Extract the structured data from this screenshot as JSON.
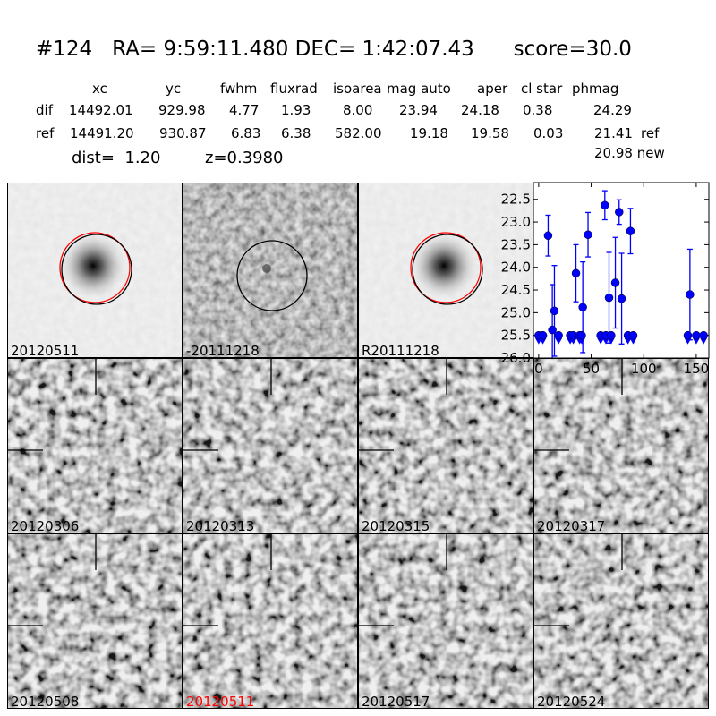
{
  "header": {
    "title": "#124   RA= 9:59:11.480 DEC= 1:42:07.43      score=30.0",
    "columns": [
      "xc",
      "yc",
      "fwhm",
      "fluxrad",
      "isoarea",
      "mag auto",
      "aper",
      "cl star",
      "phmag"
    ],
    "rows": [
      {
        "label": "dif",
        "values": [
          "14492.01",
          "929.98",
          "4.77",
          "1.93",
          "8.00",
          "23.94",
          "24.18",
          "0.38",
          "24.29"
        ],
        "suffix": ""
      },
      {
        "label": "ref",
        "values": [
          "14491.20",
          "930.87",
          "6.83",
          "6.38",
          "582.00",
          "19.18",
          "19.58",
          "0.03",
          "21.41"
        ],
        "suffix": "ref"
      }
    ],
    "new_mag": "20.98 new",
    "dist": "dist=  1.20",
    "z": "z=0.3980"
  },
  "panels": [
    {
      "label": "20120511",
      "kind": "galaxy",
      "label_color": "#000000"
    },
    {
      "label": "-20111218",
      "kind": "diff",
      "label_color": "#000000"
    },
    {
      "label": "R20111218",
      "kind": "galaxy",
      "label_color": "#000000"
    },
    {
      "label": "20120306",
      "kind": "noise",
      "label_color": "#000000"
    },
    {
      "label": "20120313",
      "kind": "noise",
      "label_color": "#000000"
    },
    {
      "label": "20120315",
      "kind": "noise",
      "label_color": "#000000"
    },
    {
      "label": "20120317",
      "kind": "noise",
      "label_color": "#000000"
    },
    {
      "label": "20120508",
      "kind": "noise",
      "label_color": "#000000"
    },
    {
      "label": "20120511",
      "kind": "noise",
      "label_color": "#ff0000"
    },
    {
      "label": "20120517",
      "kind": "noise",
      "label_color": "#000000"
    },
    {
      "label": "20120524",
      "kind": "noise",
      "label_color": "#000000"
    }
  ],
  "colors": {
    "points": "#0000ff",
    "aperture_ref": "#ff0000",
    "aperture": "#000000"
  },
  "chart_data": {
    "type": "scatter",
    "xlim": [
      -5,
      162
    ],
    "ylim": [
      26.0,
      22.13
    ],
    "y_inverted": true,
    "xticks": [
      "0",
      "50",
      "100",
      "150"
    ],
    "yticks": [
      "22.5",
      "23.0",
      "23.5",
      "24.0",
      "24.5",
      "25.0",
      "25.5",
      "26.0"
    ],
    "detections": [
      {
        "x": 9,
        "y": 23.3,
        "err": 0.45
      },
      {
        "x": 13,
        "y": 25.38,
        "err": 1.0
      },
      {
        "x": 15,
        "y": 24.96,
        "err": 1.0
      },
      {
        "x": 35.5,
        "y": 24.13,
        "err": 0.63
      },
      {
        "x": 42,
        "y": 24.88,
        "err": 1.0
      },
      {
        "x": 47,
        "y": 23.28,
        "err": 0.49
      },
      {
        "x": 63,
        "y": 22.63,
        "err": 0.32
      },
      {
        "x": 67,
        "y": 24.67,
        "err": 1.0
      },
      {
        "x": 73,
        "y": 24.34,
        "err": 1.0
      },
      {
        "x": 76.6,
        "y": 22.78,
        "err": 0.27
      },
      {
        "x": 79,
        "y": 24.69,
        "err": 1.0
      },
      {
        "x": 87.4,
        "y": 23.2,
        "err": 0.5
      },
      {
        "x": 144,
        "y": 24.6,
        "err": 1.0
      }
    ],
    "upper_limits": {
      "y": 25.5,
      "x": [
        0,
        4,
        19,
        30,
        33,
        39,
        41,
        59,
        64,
        69,
        85,
        90,
        142,
        150,
        157
      ]
    }
  }
}
